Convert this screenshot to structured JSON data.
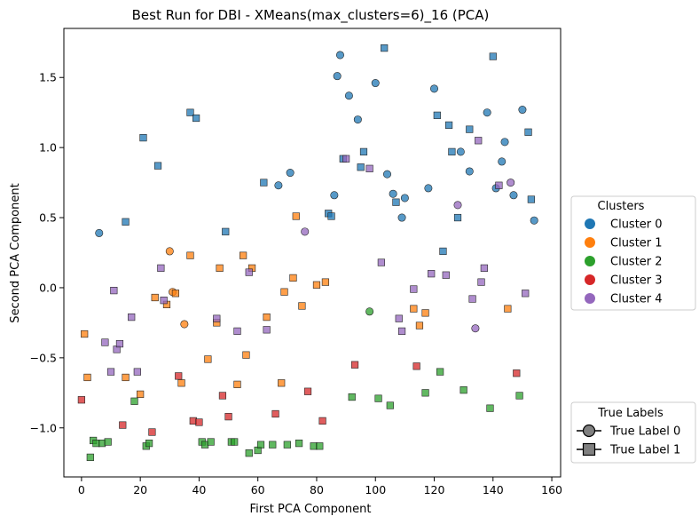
{
  "chart_data": {
    "type": "scatter",
    "title": "Best Run for DBI - XMeans(max_clusters=6)_16 (PCA)",
    "xlabel": "First PCA Component",
    "ylabel": "Second PCA Component",
    "xlim": [
      -6,
      163
    ],
    "ylim": [
      -1.35,
      1.85
    ],
    "xticks": [
      0,
      20,
      40,
      60,
      80,
      100,
      120,
      140,
      160
    ],
    "yticks": [
      -1.0,
      -0.5,
      0.0,
      0.5,
      1.0,
      1.5
    ],
    "grid": false,
    "cluster_legend": {
      "title": "Clusters",
      "placement": "right-middle",
      "items": [
        {
          "label": "Cluster 0",
          "color": "#1f77b4"
        },
        {
          "label": "Cluster 1",
          "color": "#ff7f0e"
        },
        {
          "label": "Cluster 2",
          "color": "#2ca02c"
        },
        {
          "label": "Cluster 3",
          "color": "#d62728"
        },
        {
          "label": "Cluster 4",
          "color": "#9467bd"
        }
      ]
    },
    "marker_legend": {
      "title": "True Labels",
      "placement": "right-bottom",
      "items": [
        {
          "label": "True Label 0",
          "marker": "circle"
        },
        {
          "label": "True Label 1",
          "marker": "square"
        }
      ]
    },
    "series": [
      {
        "cluster": 0,
        "true_label": 0,
        "points": [
          [
            6,
            0.39
          ],
          [
            71,
            0.82
          ],
          [
            67,
            0.73
          ],
          [
            86,
            0.66
          ],
          [
            87,
            1.51
          ],
          [
            88,
            1.66
          ],
          [
            91,
            1.37
          ],
          [
            94,
            1.2
          ],
          [
            100,
            1.46
          ],
          [
            104,
            0.81
          ],
          [
            106,
            0.67
          ],
          [
            109,
            0.5
          ],
          [
            110,
            0.64
          ],
          [
            118,
            0.71
          ],
          [
            120,
            1.42
          ],
          [
            129,
            0.97
          ],
          [
            132,
            0.83
          ],
          [
            138,
            1.25
          ],
          [
            141,
            0.71
          ],
          [
            143,
            0.9
          ],
          [
            144,
            1.04
          ],
          [
            147,
            0.66
          ],
          [
            150,
            1.27
          ],
          [
            154,
            0.48
          ]
        ]
      },
      {
        "cluster": 0,
        "true_label": 1,
        "points": [
          [
            15,
            0.47
          ],
          [
            21,
            1.07
          ],
          [
            26,
            0.87
          ],
          [
            37,
            1.25
          ],
          [
            39,
            1.21
          ],
          [
            49,
            0.4
          ],
          [
            62,
            0.75
          ],
          [
            84,
            0.53
          ],
          [
            85,
            0.51
          ],
          [
            89,
            0.92
          ],
          [
            95,
            0.86
          ],
          [
            96,
            0.97
          ],
          [
            103,
            1.71
          ],
          [
            107,
            0.61
          ],
          [
            121,
            1.23
          ],
          [
            123,
            0.26
          ],
          [
            125,
            1.16
          ],
          [
            126,
            0.97
          ],
          [
            128,
            0.5
          ],
          [
            132,
            1.13
          ],
          [
            140,
            1.65
          ],
          [
            152,
            1.11
          ],
          [
            153,
            0.63
          ]
        ]
      },
      {
        "cluster": 1,
        "true_label": 0,
        "points": [
          [
            30,
            0.26
          ],
          [
            31,
            -0.03
          ],
          [
            35,
            -0.26
          ]
        ]
      },
      {
        "cluster": 1,
        "true_label": 1,
        "points": [
          [
            1,
            -0.33
          ],
          [
            2,
            -0.64
          ],
          [
            15,
            -0.64
          ],
          [
            20,
            -0.76
          ],
          [
            25,
            -0.07
          ],
          [
            29,
            -0.12
          ],
          [
            32,
            -0.04
          ],
          [
            34,
            -0.68
          ],
          [
            37,
            0.23
          ],
          [
            43,
            -0.51
          ],
          [
            46,
            -0.25
          ],
          [
            47,
            0.14
          ],
          [
            53,
            -0.69
          ],
          [
            55,
            0.23
          ],
          [
            56,
            -0.48
          ],
          [
            58,
            0.14
          ],
          [
            63,
            -0.21
          ],
          [
            68,
            -0.68
          ],
          [
            69,
            -0.03
          ],
          [
            72,
            0.07
          ],
          [
            73,
            0.51
          ],
          [
            75,
            -0.13
          ],
          [
            80,
            0.02
          ],
          [
            83,
            0.04
          ],
          [
            113,
            -0.15
          ],
          [
            115,
            -0.27
          ],
          [
            117,
            -0.18
          ],
          [
            145,
            -0.15
          ]
        ]
      },
      {
        "cluster": 2,
        "true_label": 0,
        "points": [
          [
            98,
            -0.17
          ]
        ]
      },
      {
        "cluster": 2,
        "true_label": 1,
        "points": [
          [
            3,
            -1.21
          ],
          [
            4,
            -1.09
          ],
          [
            5,
            -1.11
          ],
          [
            7,
            -1.11
          ],
          [
            9,
            -1.1
          ],
          [
            18,
            -0.81
          ],
          [
            22,
            -1.13
          ],
          [
            23,
            -1.11
          ],
          [
            41,
            -1.1
          ],
          [
            42,
            -1.12
          ],
          [
            44,
            -1.1
          ],
          [
            51,
            -1.1
          ],
          [
            52,
            -1.1
          ],
          [
            57,
            -1.18
          ],
          [
            60,
            -1.16
          ],
          [
            61,
            -1.12
          ],
          [
            65,
            -1.12
          ],
          [
            70,
            -1.12
          ],
          [
            74,
            -1.11
          ],
          [
            79,
            -1.13
          ],
          [
            81,
            -1.13
          ],
          [
            92,
            -0.78
          ],
          [
            101,
            -0.79
          ],
          [
            105,
            -0.84
          ],
          [
            117,
            -0.75
          ],
          [
            122,
            -0.6
          ],
          [
            130,
            -0.73
          ],
          [
            139,
            -0.86
          ],
          [
            149,
            -0.77
          ]
        ]
      },
      {
        "cluster": 3,
        "true_label": 1,
        "points": [
          [
            0,
            -0.8
          ],
          [
            14,
            -0.98
          ],
          [
            24,
            -1.03
          ],
          [
            33,
            -0.63
          ],
          [
            38,
            -0.95
          ],
          [
            40,
            -0.96
          ],
          [
            48,
            -0.77
          ],
          [
            50,
            -0.92
          ],
          [
            66,
            -0.9
          ],
          [
            77,
            -0.74
          ],
          [
            82,
            -0.95
          ],
          [
            93,
            -0.55
          ],
          [
            114,
            -0.56
          ],
          [
            148,
            -0.61
          ]
        ]
      },
      {
        "cluster": 4,
        "true_label": 0,
        "points": [
          [
            76,
            0.4
          ],
          [
            128,
            0.59
          ],
          [
            134,
            -0.29
          ],
          [
            146,
            0.75
          ]
        ]
      },
      {
        "cluster": 4,
        "true_label": 1,
        "points": [
          [
            8,
            -0.39
          ],
          [
            10,
            -0.6
          ],
          [
            11,
            -0.02
          ],
          [
            12,
            -0.44
          ],
          [
            13,
            -0.4
          ],
          [
            17,
            -0.21
          ],
          [
            19,
            -0.6
          ],
          [
            27,
            0.14
          ],
          [
            28,
            -0.09
          ],
          [
            46,
            -0.22
          ],
          [
            53,
            -0.31
          ],
          [
            57,
            0.11
          ],
          [
            63,
            -0.3
          ],
          [
            90,
            0.92
          ],
          [
            98,
            0.85
          ],
          [
            102,
            0.18
          ],
          [
            108,
            -0.22
          ],
          [
            109,
            -0.31
          ],
          [
            113,
            -0.01
          ],
          [
            119,
            0.1
          ],
          [
            124,
            0.09
          ],
          [
            133,
            -0.08
          ],
          [
            135,
            1.05
          ],
          [
            136,
            0.04
          ],
          [
            137,
            0.14
          ],
          [
            142,
            0.73
          ],
          [
            151,
            -0.04
          ]
        ]
      }
    ]
  }
}
